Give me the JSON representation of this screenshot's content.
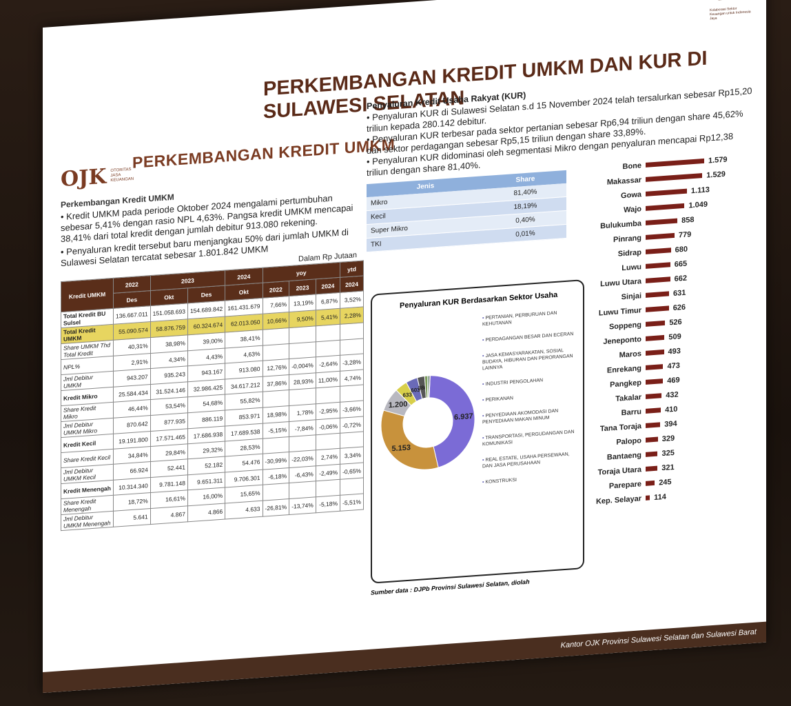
{
  "header": {
    "top_title": "PERKEMBANGAN KREDIT UMKM DAN KUR DI SULAWESI SELATAN",
    "main_title": "PERKEMBANGAN KREDIT UMKM",
    "logo_text": "OJK",
    "logo_sub": "OTORITAS JASA KEUANGAN",
    "badge": "15",
    "badge_sub": "Kolaborasi Sektor Keuangan untuk Indonesia Jaya"
  },
  "left": {
    "heading": "Perkembangan Kredit UMKM",
    "para1": "• Kredit UMKM pada periode Oktober 2024 mengalami pertumbuhan sebesar 5,41% dengan rasio NPL 4,63%. Pangsa kredit UMKM mencapai 38,41% dari total kredit dengan jumlah debitur 913.080 rekening.",
    "para2": "• Penyaluran kredit tersebut baru menjangkau 50% dari jumlah UMKM di Sulawesi Selatan tercatat sebesar 1.801.842 UMKM",
    "unit": "Dalam Rp Jutaan",
    "table_header": {
      "label": "Kredit UMKM",
      "y2022": "2022",
      "y2023": "2023",
      "y2024": "2024",
      "yoy": "yoy",
      "ytd": "ytd",
      "des": "Des",
      "okt": "Okt",
      "c2022": "2022",
      "c2023": "2023",
      "c2024": "2024"
    },
    "rows": [
      {
        "label": "Total Kredit BU Sulsel",
        "v": [
          "136.667.011",
          "151.058.693",
          "154.689.842",
          "161.431.679",
          "7,66%",
          "13,19%",
          "6,87%",
          "3,52%"
        ]
      },
      {
        "label": "Total Kredit UMKM",
        "v": [
          "55.090.574",
          "58.876.759",
          "60.324.674",
          "62.013.050",
          "10,66%",
          "9,50%",
          "5,41%",
          "2,28%"
        ]
      },
      {
        "label": "Share UMKM Thd Total Kredit",
        "v": [
          "40,31%",
          "38,98%",
          "39,00%",
          "38,41%",
          "",
          "",
          "",
          ""
        ]
      },
      {
        "label": "NPL%",
        "v": [
          "2,91%",
          "4,34%",
          "4,43%",
          "4,63%",
          "",
          "",
          "",
          ""
        ]
      },
      {
        "label": "Jml Debitur UMKM",
        "v": [
          "943.207",
          "935.243",
          "943.167",
          "913.080",
          "12,76%",
          "-0,004%",
          "-2,64%",
          "-3,28%"
        ]
      },
      {
        "label": "Kredit Mikro",
        "v": [
          "25.584.434",
          "31.524.146",
          "32.986.425",
          "34.617.212",
          "37,86%",
          "28,93%",
          "11,00%",
          "4,74%"
        ]
      },
      {
        "label": "Share Kredit Mikro",
        "v": [
          "46,44%",
          "53,54%",
          "54,68%",
          "55,82%",
          "",
          "",
          "",
          ""
        ]
      },
      {
        "label": "Jml Debitur UMKM Mikro",
        "v": [
          "870.642",
          "877.935",
          "886.119",
          "853.971",
          "18,98%",
          "1,78%",
          "-2,95%",
          "-3,66%"
        ]
      },
      {
        "label": "Kredit Kecil",
        "v": [
          "19.191.800",
          "17.571.465",
          "17.686.938",
          "17.689.538",
          "-5,15%",
          "-7,84%",
          "-0,06%",
          "-0,72%"
        ]
      },
      {
        "label": "Share Kredit Kecil",
        "v": [
          "34,84%",
          "29,84%",
          "29,32%",
          "28,53%",
          "",
          "",
          "",
          ""
        ]
      },
      {
        "label": "Jml Debitur UMKM Kecil",
        "v": [
          "66.924",
          "52.441",
          "52.182",
          "54.476",
          "-30,99%",
          "-22,03%",
          "2,74%",
          "3,34%"
        ]
      },
      {
        "label": "Kredit Menengah",
        "v": [
          "10.314.340",
          "9.781.148",
          "9.651.311",
          "9.706.301",
          "-6,18%",
          "-6,43%",
          "-2,49%",
          "-0,65%"
        ]
      },
      {
        "label": "Share Kredit Menengah",
        "v": [
          "18,72%",
          "16,61%",
          "16,00%",
          "15,65%",
          "",
          "",
          "",
          ""
        ]
      },
      {
        "label": "Jml Debitur UMKM Menengah",
        "v": [
          "5.641",
          "4.867",
          "4.866",
          "4.633",
          "-26,81%",
          "-13,74%",
          "-5,18%",
          "-5,51%"
        ]
      }
    ]
  },
  "right": {
    "heading": "Penyaluran Kredit Usaha Rakyat (KUR)",
    "p1": "• Penyaluran KUR di Sulawesi Selatan s.d 15 November 2024 telah tersalurkan sebesar Rp15,20 triliun kepada 280.142 debitur.",
    "p2": "• Penyaluran KUR terbesar pada sektor pertanian sebesar Rp6,94 triliun dengan share 45,62% dan sektor perdagangan sebesar Rp5,15 triliun dengan share 33,89%.",
    "p3": "• Penyaluran KUR didominasi oleh segmentasi Mikro dengan penyaluran mencapai Rp12,38 triliun dengan share 81,40%.",
    "share_head": [
      "Jenis",
      "Share"
    ],
    "share_rows": [
      [
        "Mikro",
        "81,40%"
      ],
      [
        "Kecil",
        "18,19%"
      ],
      [
        "Super Mikro",
        "0,40%"
      ],
      [
        "TKI",
        "0,01%"
      ]
    ],
    "donut_title": "Penyaluran KUR Berdasarkan Sektor Usaha",
    "legend": [
      "PERTANIAN, PERBURUAN DAN KEHUTANAN",
      "PERDAGANGAN BESAR DAN ECERAN",
      "JASA KEMASYARAKATAN, SOSIAL BUDAYA, HIBURAN DAN PERORANGAN LAINNYA",
      "INDUSTRI PENGOLAHAN",
      "PERIKANAN",
      "PENYEDIAAN AKOMODASI DAN PENYEDIAAN MAKAN MINUM",
      "TRANSPORTASI, PERGUDANGAN DAN KOMUNIKASI",
      "REAL ESTATE, USAHA PERSEWAAN, DAN JASA PERUSAHAAN",
      "KONSTRUKSI"
    ],
    "source": "Sumber data : DJPb Provinsi Sulawesi Selatan, diolah"
  },
  "colors": {
    "brown": "#5a2e1a",
    "bar": "#7a1f18",
    "yellow": "#e7d560",
    "purple": "#7b6bd6",
    "orange": "#c8923c",
    "grey": "#b8b8c0"
  },
  "chart_data": [
    {
      "type": "pie",
      "title": "Penyaluran KUR Berdasarkan Sektor Usaha",
      "categories": [
        "PERTANIAN, PERBURUAN DAN KEHUTANAN",
        "PERDAGANGAN BESAR DAN ECERAN",
        "JASA KEMASYARAKATAN, SOSIAL BUDAYA, HIBURAN DAN PERORANGAN LAINNYA",
        "INDUSTRI PENGOLAHAN",
        "PERIKANAN",
        "PENYEDIAAN AKOMODASI DAN PENYEDIAAN MAKAN MINUM",
        "TRANSPORTASI, PERGUDANGAN DAN KOMUNIKASI",
        "REAL ESTATE, USAHA PERSEWAAN, DAN JASA PERUSAHAAN",
        "KONSTRUKSI"
      ],
      "values": [
        6937,
        5153,
        1200,
        633,
        603,
        386,
        150,
        80,
        60
      ],
      "labels": [
        "6.937",
        "5.153",
        "1.200",
        "633",
        "603",
        "386",
        "",
        "",
        ""
      ]
    },
    {
      "type": "bar",
      "categories": [
        "Bone",
        "Makassar",
        "Gowa",
        "Wajo",
        "Bulukumba",
        "Pinrang",
        "Sidrap",
        "Luwu",
        "Luwu Utara",
        "Sinjai",
        "Luwu Timur",
        "Soppeng",
        "Jeneponto",
        "Maros",
        "Enrekang",
        "Pangkep",
        "Takalar",
        "Barru",
        "Tana Toraja",
        "Palopo",
        "Bantaeng",
        "Toraja Utara",
        "Parepare",
        "Kep. Selayar"
      ],
      "values": [
        1579,
        1529,
        1113,
        1049,
        858,
        779,
        680,
        665,
        662,
        631,
        626,
        526,
        509,
        493,
        473,
        469,
        432,
        410,
        394,
        329,
        325,
        321,
        245,
        114
      ],
      "labels": [
        "1.579",
        "1.529",
        "1.113",
        "1.049",
        "858",
        "779",
        "680",
        "665",
        "662",
        "631",
        "626",
        "526",
        "509",
        "493",
        "473",
        "469",
        "432",
        "410",
        "394",
        "329",
        "325",
        "321",
        "245",
        "114"
      ]
    }
  ],
  "footer": "Kantor OJK Provinsi Sulawesi Selatan dan Sulawesi Barat"
}
